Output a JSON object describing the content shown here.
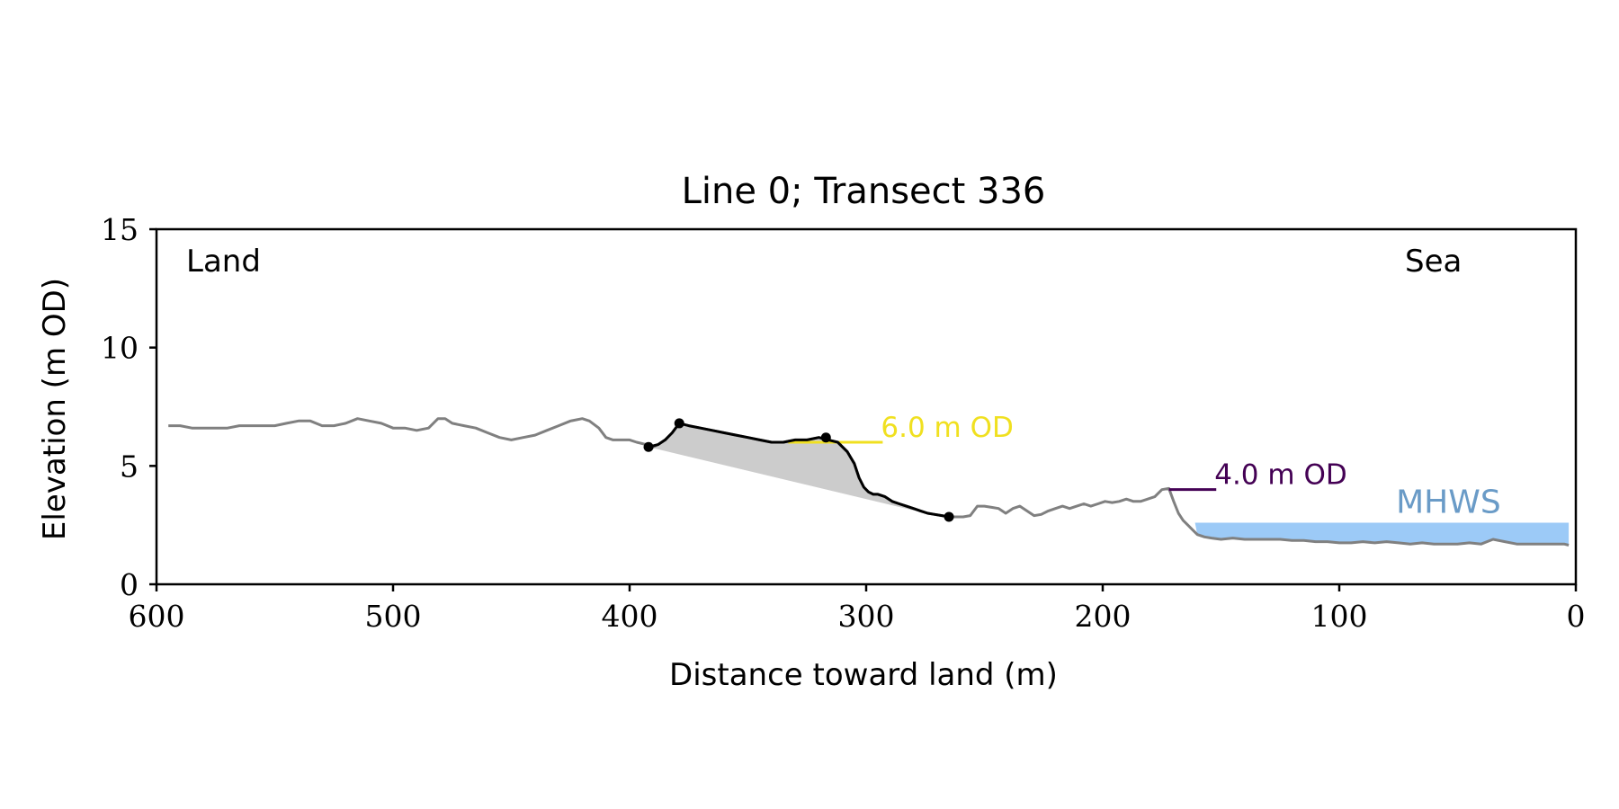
{
  "chart_data": {
    "type": "line",
    "title": "Line 0; Transect 336",
    "xlabel": "Distance toward land (m)",
    "ylabel": "Elevation (m OD)",
    "xlim": [
      600,
      0
    ],
    "ylim": [
      0,
      15
    ],
    "x_ticks": [
      "600",
      "500",
      "400",
      "300",
      "200",
      "100",
      "0"
    ],
    "x_tick_values": [
      600,
      500,
      400,
      300,
      200,
      100,
      0
    ],
    "y_ticks": [
      "0",
      "5",
      "10",
      "15"
    ],
    "y_tick_values": [
      0,
      5,
      10,
      15
    ],
    "grid": false,
    "corner_labels": {
      "left": "Land",
      "right": "Sea"
    },
    "profile": {
      "color": "#808080",
      "x": [
        595,
        590,
        585,
        580,
        575,
        570,
        565,
        560,
        555,
        550,
        545,
        540,
        535,
        530,
        525,
        520,
        515,
        510,
        505,
        500,
        495,
        490,
        485,
        481,
        478,
        475,
        470,
        465,
        460,
        455,
        450,
        445,
        440,
        435,
        430,
        425,
        420,
        417,
        413,
        410,
        407,
        403,
        400,
        397,
        393,
        390,
        388,
        385,
        382,
        379,
        375,
        370,
        365,
        360,
        355,
        350,
        345,
        340,
        335,
        330,
        325,
        320,
        316,
        312,
        308,
        305,
        303,
        301,
        299,
        297,
        295,
        292,
        289,
        286,
        283,
        280,
        277,
        274,
        271,
        268,
        265,
        262,
        259,
        256,
        253,
        250,
        247,
        244,
        241,
        238,
        235,
        232,
        229,
        226,
        223,
        220,
        217,
        214,
        211,
        208,
        205,
        202,
        199,
        196,
        193,
        190,
        187,
        184,
        181,
        178,
        175,
        172,
        170,
        168,
        166,
        164,
        162,
        160,
        157,
        154,
        150,
        145,
        140,
        135,
        130,
        125,
        120,
        115,
        110,
        105,
        100,
        95,
        90,
        85,
        80,
        75,
        70,
        65,
        60,
        55,
        50,
        45,
        40,
        35,
        30,
        25,
        20,
        15,
        10,
        5,
        3
      ],
      "y": [
        6.7,
        6.7,
        6.6,
        6.6,
        6.6,
        6.6,
        6.7,
        6.7,
        6.7,
        6.7,
        6.8,
        6.9,
        6.9,
        6.7,
        6.7,
        6.8,
        7.0,
        6.9,
        6.8,
        6.6,
        6.6,
        6.5,
        6.6,
        7.0,
        7.0,
        6.8,
        6.7,
        6.6,
        6.4,
        6.2,
        6.1,
        6.2,
        6.3,
        6.5,
        6.7,
        6.9,
        7.0,
        6.9,
        6.6,
        6.2,
        6.1,
        6.1,
        6.1,
        6.0,
        5.9,
        5.8,
        5.9,
        6.1,
        6.4,
        6.8,
        6.7,
        6.6,
        6.5,
        6.4,
        6.3,
        6.2,
        6.1,
        6.0,
        6.0,
        6.1,
        6.1,
        6.2,
        6.1,
        6.0,
        5.6,
        5.1,
        4.5,
        4.1,
        3.9,
        3.8,
        3.8,
        3.7,
        3.5,
        3.4,
        3.3,
        3.2,
        3.1,
        3.0,
        2.95,
        2.9,
        2.85,
        2.85,
        2.85,
        2.9,
        3.3,
        3.3,
        3.25,
        3.2,
        3.0,
        3.2,
        3.3,
        3.1,
        2.9,
        2.95,
        3.1,
        3.2,
        3.3,
        3.2,
        3.3,
        3.4,
        3.3,
        3.4,
        3.5,
        3.45,
        3.5,
        3.6,
        3.5,
        3.5,
        3.6,
        3.7,
        4.0,
        4.05,
        3.5,
        3.0,
        2.7,
        2.5,
        2.3,
        2.1,
        2.0,
        1.95,
        1.9,
        1.95,
        1.9,
        1.9,
        1.9,
        1.9,
        1.85,
        1.85,
        1.8,
        1.8,
        1.75,
        1.75,
        1.8,
        1.75,
        1.8,
        1.75,
        1.7,
        1.75,
        1.7,
        1.7,
        1.7,
        1.75,
        1.7,
        1.9,
        1.8,
        1.7,
        1.7,
        1.7,
        1.7,
        1.7,
        1.65
      ]
    },
    "dune_face": {
      "color": "#000000",
      "x": [
        392,
        388,
        385,
        382,
        379,
        375,
        370,
        365,
        360,
        355,
        350,
        345,
        340,
        335,
        330,
        325,
        320,
        316,
        312,
        308,
        305,
        303,
        301,
        299,
        297,
        295,
        292,
        289,
        286,
        283,
        280,
        277,
        274,
        271,
        268,
        265
      ],
      "y": [
        5.8,
        5.9,
        6.1,
        6.4,
        6.8,
        6.7,
        6.6,
        6.5,
        6.4,
        6.3,
        6.2,
        6.1,
        6.0,
        6.0,
        6.1,
        6.1,
        6.2,
        6.1,
        6.0,
        5.6,
        5.1,
        4.5,
        4.1,
        3.9,
        3.8,
        3.8,
        3.7,
        3.5,
        3.4,
        3.3,
        3.2,
        3.1,
        3.0,
        2.95,
        2.9,
        2.85
      ]
    },
    "markers": [
      {
        "x": 392,
        "y": 5.8
      },
      {
        "x": 379,
        "y": 6.8
      },
      {
        "x": 317,
        "y": 6.2
      },
      {
        "x": 265,
        "y": 2.85
      }
    ],
    "shaded_region": {
      "color": "#cccccc",
      "toe_line": {
        "x": [
          392,
          275
        ],
        "y": [
          5.8,
          3.0
        ]
      }
    },
    "reference_lines": [
      {
        "label": "6.0 m OD",
        "y": 6.0,
        "x": [
          333,
          293
        ],
        "color": "#f0e020"
      },
      {
        "label": "4.0 m OD",
        "y": 4.0,
        "x": [
          172,
          152
        ],
        "color": "#440154"
      }
    ],
    "mhws": {
      "label": "MHWS",
      "y": 2.6,
      "x": [
        161,
        3
      ],
      "fill_color": "#9ccaf7",
      "label_color": "#6a9bc7"
    }
  }
}
